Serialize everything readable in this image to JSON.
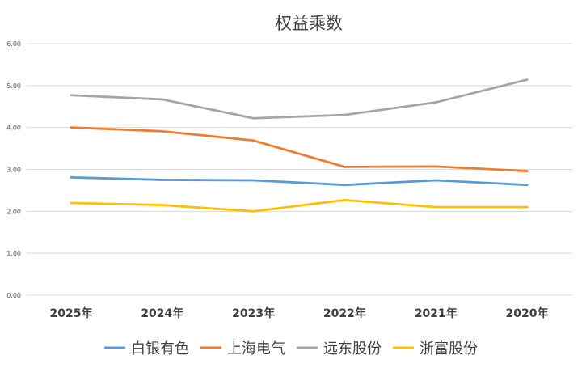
{
  "chart_data": {
    "type": "line",
    "title": "权益乘数",
    "categories": [
      "2025年",
      "2024年",
      "2023年",
      "2022年",
      "2021年",
      "2020年"
    ],
    "ylim": [
      0,
      6
    ],
    "yticks": [
      "0.00",
      "1.00",
      "2.00",
      "3.00",
      "4.00",
      "5.00",
      "6.00"
    ],
    "grid": true,
    "legend_position": "bottom",
    "series": [
      {
        "name": "白银有色",
        "color": "#5b9bd5",
        "values": [
          2.81,
          2.75,
          2.74,
          2.63,
          2.74,
          2.63
        ]
      },
      {
        "name": "上海电气",
        "color": "#ed7d31",
        "values": [
          4.0,
          3.91,
          3.69,
          3.06,
          3.07,
          2.96
        ]
      },
      {
        "name": "远东股份",
        "color": "#a5a5a5",
        "values": [
          4.77,
          4.67,
          4.22,
          4.3,
          4.6,
          5.14
        ]
      },
      {
        "name": "浙富股份",
        "color": "#ffc000",
        "values": [
          2.2,
          2.15,
          2.0,
          2.27,
          2.1,
          2.1
        ]
      }
    ]
  }
}
